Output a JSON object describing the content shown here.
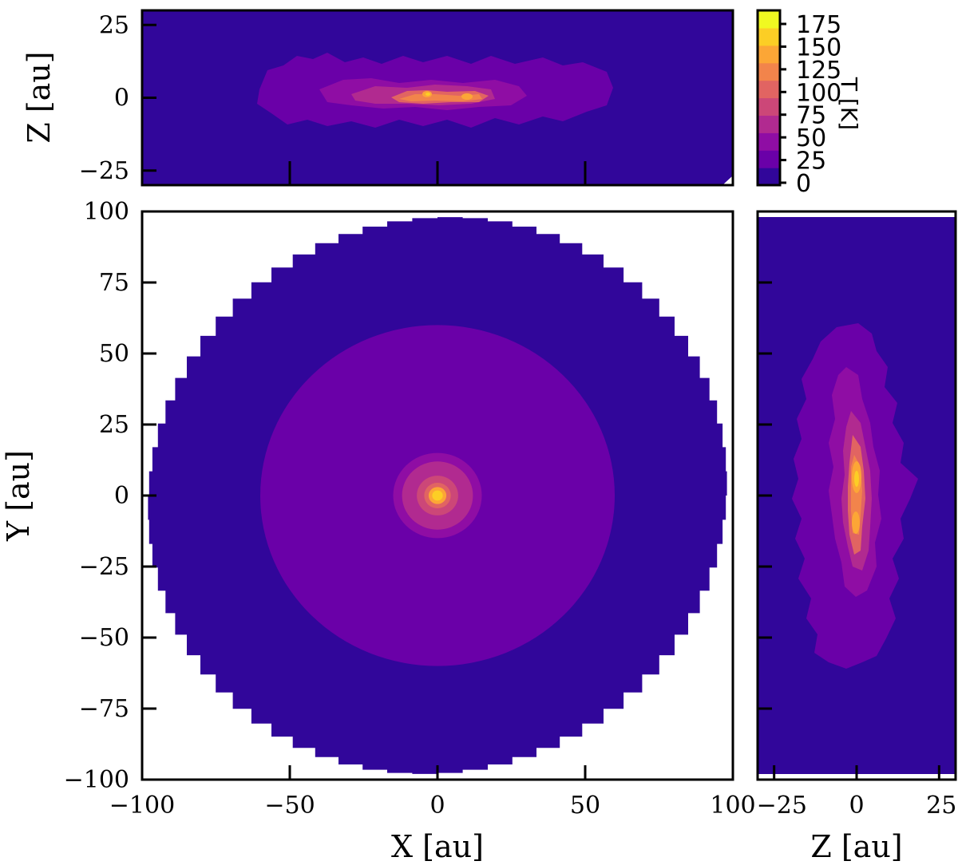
{
  "chart_data": [
    {
      "panel": "top",
      "type": "heatmap",
      "description": "Temperature projection in the X-Z plane",
      "xlabel": "X [au]",
      "ylabel": "Z [au]",
      "xlim": [
        -100,
        100
      ],
      "ylim": [
        -30,
        30
      ],
      "yticks": [
        25,
        0,
        -25
      ],
      "ytick_labels": [
        "25",
        "0",
        "−25"
      ],
      "xticks": [
        -50,
        0,
        50
      ],
      "show_x_tick_labels": false
    },
    {
      "panel": "main",
      "type": "heatmap",
      "description": "Temperature projection in the X-Y plane",
      "xlabel": "X [au]",
      "ylabel": "Y [au]",
      "xlim": [
        -100,
        100
      ],
      "ylim": [
        -100,
        100
      ],
      "xticks": [
        -100,
        -50,
        0,
        50,
        100
      ],
      "xtick_labels": [
        "−100",
        "−50",
        "0",
        "50",
        "100"
      ],
      "yticks": [
        100,
        75,
        50,
        25,
        0,
        -25,
        -50,
        -75,
        -100
      ],
      "ytick_labels": [
        "100",
        "75",
        "50",
        "25",
        "0",
        "−25",
        "−50",
        "−75",
        "−100"
      ],
      "outer_disk_radius": 98,
      "regions": [
        {
          "r_max": 98,
          "temperature": 0
        },
        {
          "r_max": 60,
          "temperature": 25
        },
        {
          "r_max": 15,
          "temperature": 50
        },
        {
          "r_max": 12,
          "temperature": 75
        },
        {
          "r_max": 7,
          "temperature": 100
        },
        {
          "r_max": 4.5,
          "temperature": 125
        },
        {
          "r_max": 3,
          "temperature": 150
        },
        {
          "r_max": 1.8,
          "temperature": 175
        }
      ]
    },
    {
      "panel": "right",
      "type": "heatmap",
      "description": "Temperature projection in the Z-Y plane",
      "xlabel": "Z [au]",
      "ylabel": "Y [au]",
      "xlim": [
        -30,
        30
      ],
      "ylim": [
        -100,
        100
      ],
      "xticks": [
        -25,
        0,
        25
      ],
      "xtick_labels": [
        "−25",
        "0",
        "25"
      ],
      "yticks": [
        75,
        50,
        25,
        0,
        -25,
        -50,
        -75
      ]
    },
    {
      "panel": "colorbar",
      "type": "colorbar",
      "label": "T [K]",
      "ticks": [
        0,
        25,
        50,
        75,
        100,
        125,
        150,
        175
      ],
      "tick_labels": [
        "0",
        "25",
        "50",
        "75",
        "100",
        "125",
        "150",
        "175"
      ],
      "colors": [
        "#31069a",
        "#6a00a8",
        "#8f0da4",
        "#b12a90",
        "#cc4778",
        "#e16462",
        "#f2844b",
        "#fca636",
        "#fcce25",
        "#f0f921"
      ]
    }
  ]
}
